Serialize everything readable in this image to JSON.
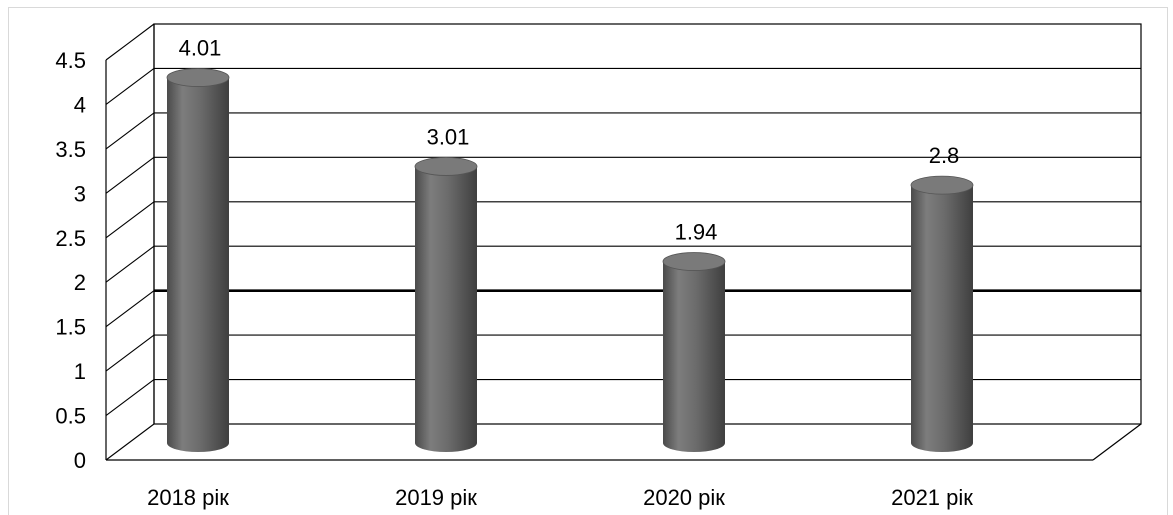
{
  "chart_data": {
    "type": "bar",
    "style": "3d-cylinder",
    "categories": [
      "2018 рік",
      "2019 рік",
      "2020 рік",
      "2021 рік"
    ],
    "values": [
      4.01,
      3.01,
      1.94,
      2.8
    ],
    "data_labels": [
      "4.01",
      "3.01",
      "1.94",
      "2.8"
    ],
    "y_ticks": [
      "0",
      "0.5",
      "1",
      "1.5",
      "2",
      "2.5",
      "3",
      "3.5",
      "4",
      "4.5"
    ],
    "ylim": [
      0,
      4.5
    ],
    "grid": true,
    "emphasized_gridline": 1.5,
    "title": "",
    "xlabel": "",
    "ylabel": "",
    "colors": {
      "bar": "#6b6b6b",
      "bar_top": "#7a7a7a",
      "grid": "#000000",
      "wall": "#ffffff"
    }
  }
}
